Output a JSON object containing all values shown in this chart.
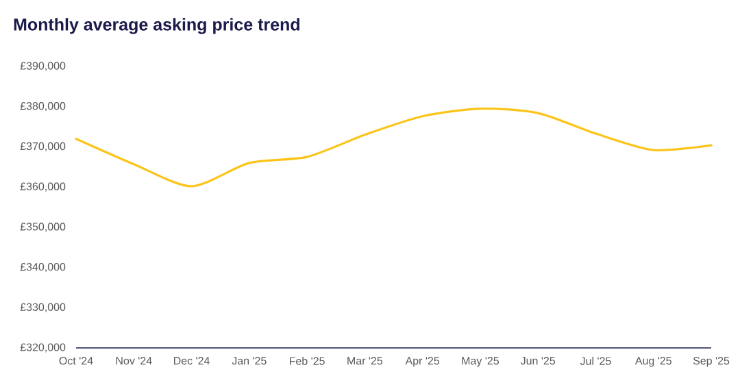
{
  "chart_data": {
    "type": "line",
    "title": "Monthly average asking price trend",
    "categories": [
      "Oct '24",
      "Nov '24",
      "Dec '24",
      "Jan '25",
      "Feb '25",
      "Mar '25",
      "Apr '25",
      "May '25",
      "Jun '25",
      "Jul '25",
      "Aug '25",
      "Sep '25"
    ],
    "values": [
      372000,
      365700,
      360200,
      366000,
      367500,
      373000,
      377600,
      379500,
      378400,
      373300,
      369200,
      370400
    ],
    "color": "#fcc419",
    "marker": "none",
    "line_style": "solid",
    "ylim": [
      320000,
      390000
    ],
    "yticks": [
      {
        "value": 320000,
        "label": "£320,000"
      },
      {
        "value": 330000,
        "label": "£330,000"
      },
      {
        "value": 340000,
        "label": "£340,000"
      },
      {
        "value": 350000,
        "label": "£350,000"
      },
      {
        "value": 360000,
        "label": "£360,000"
      },
      {
        "value": 370000,
        "label": "£370,000"
      },
      {
        "value": 380000,
        "label": "£380,000"
      },
      {
        "value": 390000,
        "label": "£390,000"
      }
    ]
  }
}
